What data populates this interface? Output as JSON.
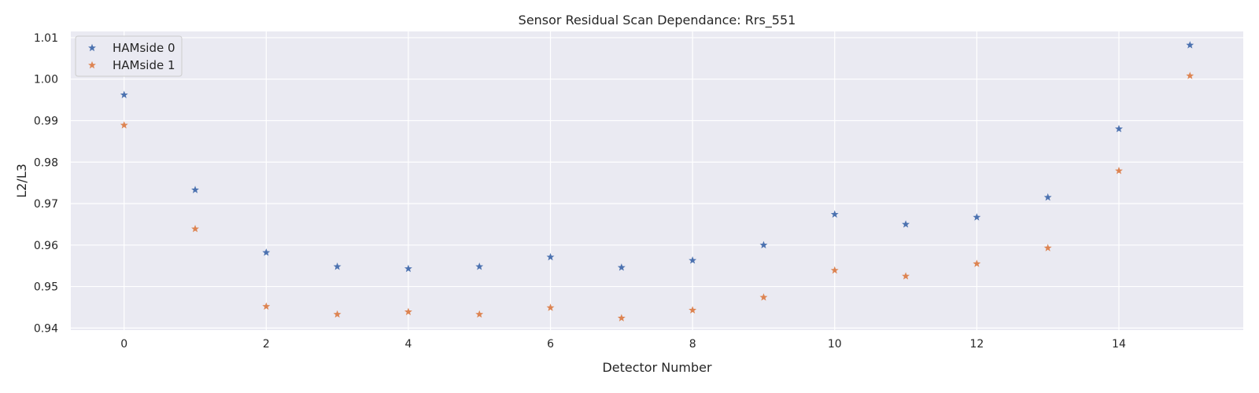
{
  "chart_data": {
    "type": "scatter",
    "title": "Sensor Residual Scan Dependance: Rrs_551",
    "xlabel": "Detector Number",
    "ylabel": "L2/L3",
    "xlim": [
      -0.75,
      15.75
    ],
    "ylim": [
      0.9395,
      1.0115
    ],
    "x_ticks": [
      0,
      2,
      4,
      6,
      8,
      10,
      12,
      14
    ],
    "y_ticks": [
      0.94,
      0.95,
      0.96,
      0.97,
      0.98,
      0.99,
      1.0,
      1.01
    ],
    "y_tick_labels": [
      "0.94",
      "0.95",
      "0.96",
      "0.97",
      "0.98",
      "0.99",
      "1.00",
      "1.01"
    ],
    "grid": true,
    "legend_position": "top-left",
    "marker": "star",
    "x": [
      0,
      1,
      2,
      3,
      4,
      5,
      6,
      7,
      8,
      9,
      10,
      11,
      12,
      13,
      14,
      15
    ],
    "series": [
      {
        "name": "HAMside 0",
        "color": "#4c72b0",
        "values": [
          0.9962,
          0.9733,
          0.9582,
          0.9548,
          0.9543,
          0.9548,
          0.9571,
          0.9546,
          0.9563,
          0.96,
          0.9674,
          0.965,
          0.9667,
          0.9715,
          0.988,
          1.0082
        ]
      },
      {
        "name": "HAMside 1",
        "color": "#dd8452",
        "values": [
          0.9889,
          0.9639,
          0.9452,
          0.9433,
          0.9439,
          0.9433,
          0.9449,
          0.9424,
          0.9443,
          0.9474,
          0.9539,
          0.9525,
          0.9555,
          0.9593,
          0.9779,
          1.0008
        ]
      }
    ]
  }
}
